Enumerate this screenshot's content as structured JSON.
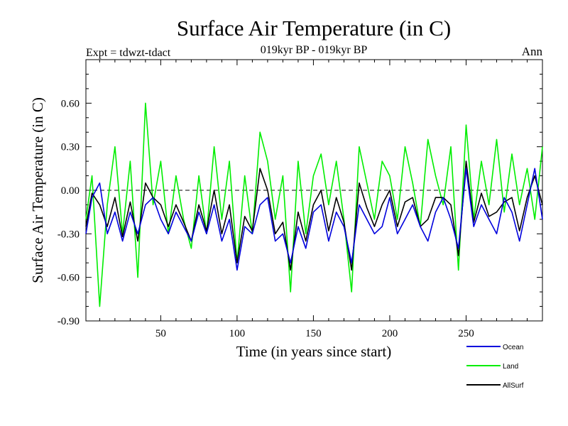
{
  "chart_data": {
    "type": "line",
    "title": "Surface Air Temperature (in C)",
    "subtitle": "019kyr BP - 019kyr BP",
    "experiment": "Expt = tdwzt-tdact",
    "season": "Ann",
    "xlabel": "Time (in years since start)",
    "ylabel": "Surface Air Temperature (in C)",
    "xlim": [
      1,
      300
    ],
    "ylim": [
      -0.9,
      0.9
    ],
    "xticks": [
      50,
      100,
      150,
      200,
      250
    ],
    "xtick_labels": [
      "50",
      "100",
      "150",
      "200",
      "250"
    ],
    "yticks": [
      -0.9,
      -0.6,
      -0.3,
      0.0,
      0.3,
      0.6
    ],
    "ytick_labels": [
      "-0.90",
      "-0.60",
      "-0.30",
      "0.00",
      "0.30",
      "0.60"
    ],
    "reference_line": 0.0,
    "legend_position": "bottom-right",
    "series": [
      {
        "name": "Ocean",
        "color": "#0000dd",
        "x": [
          1,
          5,
          10,
          15,
          20,
          25,
          30,
          35,
          40,
          45,
          50,
          55,
          60,
          65,
          70,
          75,
          80,
          85,
          90,
          95,
          100,
          105,
          110,
          115,
          120,
          125,
          130,
          135,
          140,
          145,
          150,
          155,
          160,
          165,
          170,
          175,
          180,
          185,
          190,
          195,
          200,
          205,
          210,
          215,
          220,
          225,
          230,
          235,
          240,
          245,
          250,
          255,
          260,
          265,
          270,
          275,
          280,
          285,
          290,
          295,
          300
        ],
        "values": [
          -0.3,
          -0.05,
          0.05,
          -0.3,
          -0.15,
          -0.35,
          -0.15,
          -0.3,
          -0.1,
          -0.05,
          -0.2,
          -0.3,
          -0.15,
          -0.25,
          -0.35,
          -0.15,
          -0.3,
          -0.1,
          -0.35,
          -0.2,
          -0.55,
          -0.25,
          -0.3,
          -0.1,
          -0.05,
          -0.35,
          -0.3,
          -0.5,
          -0.25,
          -0.4,
          -0.15,
          -0.1,
          -0.35,
          -0.15,
          -0.25,
          -0.5,
          -0.1,
          -0.2,
          -0.3,
          -0.25,
          -0.05,
          -0.3,
          -0.2,
          -0.1,
          -0.25,
          -0.35,
          -0.15,
          -0.05,
          -0.2,
          -0.4,
          0.15,
          -0.25,
          -0.1,
          -0.2,
          -0.3,
          -0.05,
          -0.15,
          -0.35,
          -0.1,
          0.15,
          -0.2
        ]
      },
      {
        "name": "Land",
        "color": "#00ee00",
        "x": [
          1,
          5,
          10,
          15,
          20,
          25,
          30,
          35,
          40,
          45,
          50,
          55,
          60,
          65,
          70,
          75,
          80,
          85,
          90,
          95,
          100,
          105,
          110,
          115,
          120,
          125,
          130,
          135,
          140,
          145,
          150,
          155,
          160,
          165,
          170,
          175,
          180,
          185,
          190,
          195,
          200,
          205,
          210,
          215,
          220,
          225,
          230,
          235,
          240,
          245,
          250,
          255,
          260,
          265,
          270,
          275,
          280,
          285,
          290,
          295,
          300
        ],
        "values": [
          -0.2,
          0.1,
          -0.8,
          -0.1,
          0.3,
          -0.3,
          0.2,
          -0.6,
          0.6,
          -0.1,
          0.2,
          -0.3,
          0.1,
          -0.2,
          -0.4,
          0.1,
          -0.3,
          0.3,
          -0.2,
          0.2,
          -0.5,
          0.1,
          -0.3,
          0.4,
          0.2,
          -0.2,
          0.1,
          -0.7,
          0.2,
          -0.3,
          0.1,
          0.25,
          -0.1,
          0.2,
          -0.2,
          -0.7,
          0.3,
          0.05,
          -0.2,
          0.2,
          0.1,
          -0.2,
          0.3,
          0.05,
          -0.25,
          0.35,
          0.1,
          -0.1,
          0.3,
          -0.55,
          0.45,
          -0.2,
          0.2,
          -0.1,
          0.35,
          -0.15,
          0.25,
          -0.1,
          0.15,
          -0.2,
          0.3
        ]
      },
      {
        "name": "AllSurf",
        "color": "#000000",
        "x": [
          1,
          5,
          10,
          15,
          20,
          25,
          30,
          35,
          40,
          45,
          50,
          55,
          60,
          65,
          70,
          75,
          80,
          85,
          90,
          95,
          100,
          105,
          110,
          115,
          120,
          125,
          130,
          135,
          140,
          145,
          150,
          155,
          160,
          165,
          170,
          175,
          180,
          185,
          190,
          195,
          200,
          205,
          210,
          215,
          220,
          225,
          230,
          235,
          240,
          245,
          250,
          255,
          260,
          265,
          270,
          275,
          280,
          285,
          290,
          295,
          300
        ],
        "values": [
          -0.25,
          -0.02,
          -0.1,
          -0.25,
          -0.05,
          -0.32,
          -0.08,
          -0.35,
          0.05,
          -0.05,
          -0.1,
          -0.25,
          -0.1,
          -0.22,
          -0.35,
          -0.1,
          -0.28,
          0.0,
          -0.3,
          -0.1,
          -0.5,
          -0.18,
          -0.28,
          0.15,
          0.0,
          -0.3,
          -0.22,
          -0.55,
          -0.15,
          -0.35,
          -0.1,
          0.0,
          -0.28,
          -0.05,
          -0.22,
          -0.55,
          0.05,
          -0.12,
          -0.25,
          -0.1,
          0.0,
          -0.25,
          -0.08,
          -0.05,
          -0.25,
          -0.2,
          -0.05,
          -0.05,
          -0.1,
          -0.45,
          0.2,
          -0.22,
          -0.02,
          -0.18,
          -0.15,
          -0.08,
          -0.05,
          -0.28,
          -0.05,
          0.1,
          -0.1
        ]
      }
    ]
  }
}
